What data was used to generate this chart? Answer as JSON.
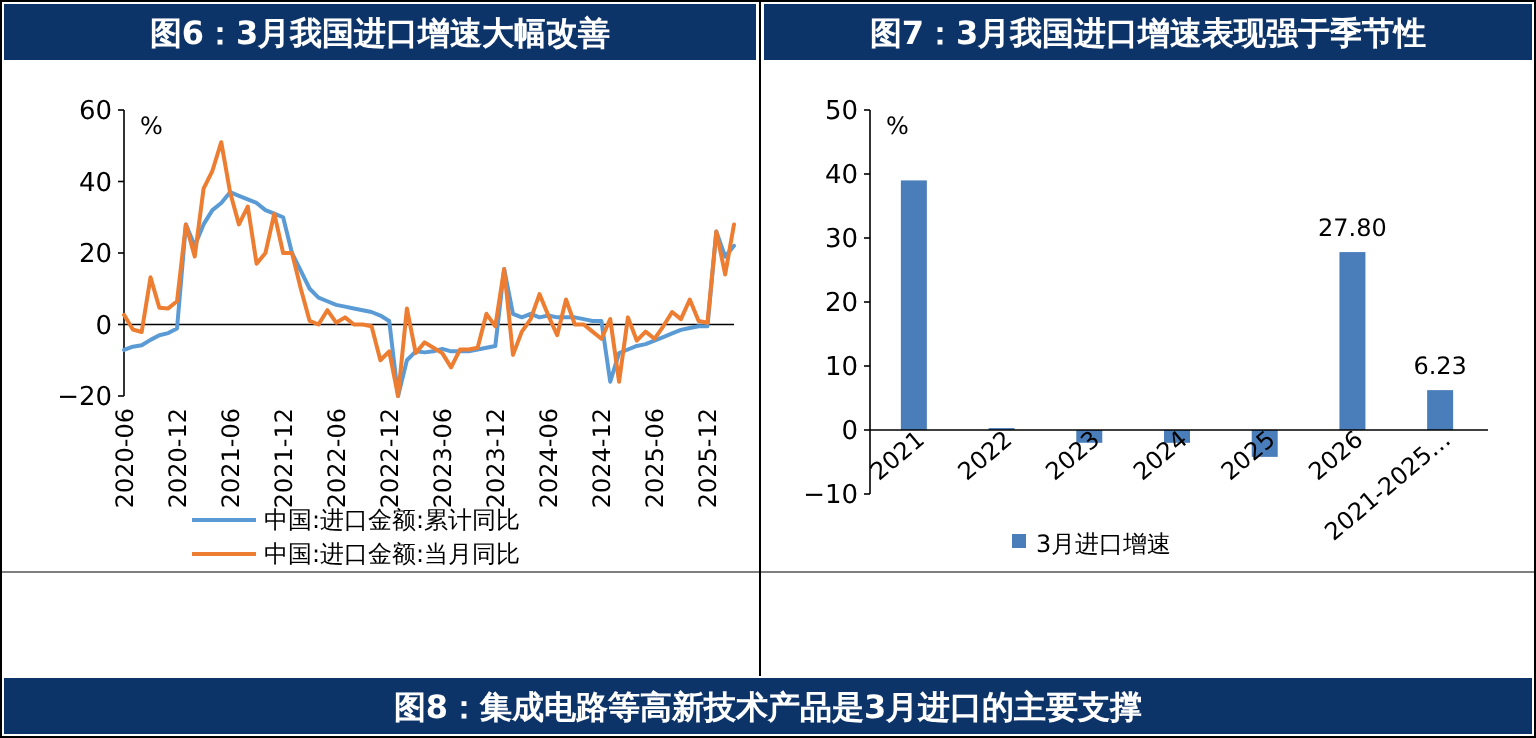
{
  "chart_data": [
    {
      "type": "line",
      "title": "图6：3月我国进口增速大幅改善",
      "ylabel": "%",
      "legend": "bottom",
      "line_style": "solid",
      "marker": "none",
      "x": [
        "2020-06",
        "2020-07",
        "2020-08",
        "2020-09",
        "2020-10",
        "2020-11",
        "2020-12",
        "2021-01",
        "2021-02",
        "2021-03",
        "2021-04",
        "2021-05",
        "2021-06",
        "2021-07",
        "2021-08",
        "2021-09",
        "2021-10",
        "2021-11",
        "2021-12",
        "2022-01",
        "2022-02",
        "2022-03",
        "2022-04",
        "2022-05",
        "2022-06",
        "2022-07",
        "2022-08",
        "2022-09",
        "2022-10",
        "2022-11",
        "2022-12",
        "2023-01",
        "2023-02",
        "2023-03",
        "2023-04",
        "2023-05",
        "2023-06",
        "2023-07",
        "2023-08",
        "2023-09",
        "2023-10",
        "2023-11",
        "2023-12",
        "2024-01",
        "2024-02",
        "2024-03",
        "2024-04",
        "2024-05",
        "2024-06",
        "2024-07",
        "2024-08",
        "2024-09",
        "2024-10",
        "2024-11",
        "2024-12",
        "2025-01",
        "2025-02",
        "2025-03",
        "2025-04",
        "2025-05",
        "2025-06",
        "2025-07",
        "2025-08",
        "2025-09",
        "2025-10",
        "2025-11",
        "2025-12",
        "2026-01",
        "2026-02",
        "2026-03"
      ],
      "xlim": [
        "2020-06",
        "2026-03"
      ],
      "xticks": [
        "2020-06",
        "2020-12",
        "2021-06",
        "2021-12",
        "2022-06",
        "2022-12",
        "2023-06",
        "2023-12",
        "2024-06",
        "2024-12",
        "2025-06",
        "2025-12"
      ],
      "ylim": [
        -20,
        60
      ],
      "yticks": [
        -20,
        0,
        20,
        40,
        60
      ],
      "series": [
        {
          "name": "中国:进口金额:累计同比",
          "color": "#5b9bd5",
          "values": [
            -7.1,
            -6.2,
            -5.8,
            -4.3,
            -3,
            -2.4,
            -1.1,
            28,
            22,
            28,
            32,
            34,
            37,
            36,
            35,
            34,
            32,
            31,
            30,
            20,
            15,
            10,
            7.5,
            6.5,
            5.5,
            5,
            4.5,
            4,
            3.5,
            2.5,
            1,
            -20,
            -10,
            -7.5,
            -7.8,
            -7.5,
            -6.8,
            -7.5,
            -7.5,
            -7.5,
            -7,
            -6.5,
            -6,
            15.5,
            3,
            2,
            3,
            2,
            2.5,
            2,
            2,
            2,
            1.5,
            1,
            1,
            -16,
            -8,
            -7,
            -6,
            -5.5,
            -4.5,
            -3.5,
            -2.5,
            -1.5,
            -1,
            -0.5,
            -0.5,
            26,
            19,
            22
          ]
        },
        {
          "name": "中国:进口金额:当月同比",
          "color": "#ed7d31",
          "values": [
            2.7,
            -1.4,
            -2.1,
            13.2,
            4.7,
            4.5,
            6.5,
            28,
            19,
            38,
            43,
            51,
            37,
            28,
            33,
            17,
            20,
            31,
            20,
            20,
            10,
            1,
            0,
            4,
            0.5,
            2,
            0,
            0,
            -0.5,
            -10,
            -7.5,
            -20,
            4.5,
            -8,
            -5,
            -6.5,
            -8,
            -12,
            -7,
            -7,
            -6.5,
            3,
            -0.5,
            15.5,
            -8.5,
            -2,
            1.5,
            8.5,
            2.5,
            -3,
            7,
            0,
            0,
            -2,
            -4,
            1.5,
            -16,
            2,
            -4.5,
            -2,
            -4,
            -0.5,
            3.5,
            1.5,
            7,
            1,
            0.5,
            26,
            14,
            28
          ]
        }
      ]
    },
    {
      "type": "bar",
      "title": "图7：3月我国进口增速表现强于季节性",
      "ylabel": "%",
      "legend": "bottom",
      "categories": [
        "2021",
        "2022",
        "2023",
        "2024",
        "2025",
        "2026",
        "2021-2025…"
      ],
      "series": [
        {
          "name": "3月进口增速",
          "color": "#4a7ebb",
          "values": [
            39,
            0.3,
            -2,
            -2,
            -4.2,
            27.8,
            6.23
          ],
          "value_labels": [
            null,
            null,
            null,
            null,
            null,
            "27.80",
            "6.23"
          ]
        }
      ],
      "ylim": [
        -10,
        50
      ],
      "yticks": [
        -10,
        0,
        10,
        20,
        30,
        40,
        50
      ]
    },
    {
      "type": "other",
      "title": "图8：集成电路等高新技术产品是3月进口的主要支撑"
    }
  ]
}
